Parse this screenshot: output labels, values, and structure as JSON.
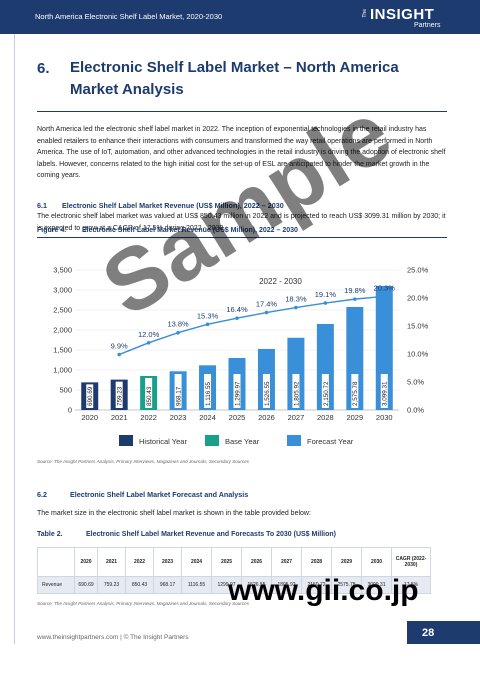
{
  "header": {
    "title": "North America Electronic Shelf Label Market, 2020-2030",
    "logo_the": "The",
    "logo_main": "INSIGHT",
    "logo_sub": "Partners"
  },
  "section": {
    "number": "6.",
    "title": "Electronic Shelf Label Market – North America Market Analysis"
  },
  "intro": "North America led the electronic shelf label market in 2022. The inception of exponential technologies in the retail industry has enabled retailers to enhance their interactions with consumers and transformed the way retail operations are performed in North America. The use of IoT, automation, and other advanced technologies in the retail industry is driving the adoption of electronic shelf labels. However, concerns related to the high initial cost for the set-up of ESL are anticipated to hinder the market growth in the coming years.",
  "sub61": {
    "number": "6.1",
    "title": "Electronic Shelf Label Market Revenue (US$ Million), 2022 – 2030",
    "text": "The electronic shelf label market was valued at US$ 850.43 million in 2022 and is projected to reach US$ 3099.31 million by 2030; it is expected to grow at a CAGR of 17.5% during 2022 - 2030."
  },
  "figure": {
    "label": "Figure 4.",
    "title": "Electronic Shelf Label Market Revenue (US$ Million), 2022 – 2030"
  },
  "chart_data": {
    "type": "bar",
    "categories": [
      "2020",
      "2021",
      "2022",
      "2023",
      "2024",
      "2025",
      "2026",
      "2027",
      "2028",
      "2029",
      "2030"
    ],
    "values": [
      690.69,
      759.23,
      850.43,
      968.17,
      1116.55,
      1299.97,
      1526.55,
      1805.92,
      2150.72,
      2575.78,
      3099.31
    ],
    "value_labels": [
      "690.69",
      "759.23",
      "850.43",
      "968.17",
      "1,116.55",
      "1,299.97",
      "1,526.55",
      "1,805.92",
      "2,150.72",
      "2,575.78",
      "3,099.31"
    ],
    "bar_types": [
      "historical",
      "historical",
      "base",
      "forecast",
      "forecast",
      "forecast",
      "forecast",
      "forecast",
      "forecast",
      "forecast",
      "forecast"
    ],
    "growth_x": [
      "2021",
      "2022",
      "2023",
      "2024",
      "2025",
      "2026",
      "2027",
      "2028",
      "2029",
      "2030"
    ],
    "growth_values": [
      9.9,
      12.0,
      13.8,
      15.3,
      16.4,
      17.4,
      18.3,
      19.1,
      19.8,
      20.3
    ],
    "growth_labels": [
      "9.9%",
      "12.0%",
      "13.8%",
      "15.3%",
      "16.4%",
      "17.4%",
      "18.3%",
      "19.1%",
      "19.8%",
      "20.3%"
    ],
    "cagr_label": "2022 - 2030",
    "ylim": [
      0,
      3500
    ],
    "y_ticks": [
      "0",
      "500",
      "1,000",
      "1,500",
      "2,000",
      "2,500",
      "3,000",
      "3,500"
    ],
    "y2lim": [
      0,
      25
    ],
    "y2_ticks": [
      "0.0%",
      "5.0%",
      "10.0%",
      "15.0%",
      "20.0%",
      "25.0%"
    ],
    "legend": [
      "Historical Year",
      "Base Year",
      "Forecast Year"
    ],
    "colors": {
      "historical": "#1d3b6e",
      "base": "#1aa08a",
      "forecast": "#3a8fd9",
      "line": "#3a8fd9"
    }
  },
  "source1": "Source: The Insight Partners Analysis, Primary Interviews, Magazines and Journals, Secondary Sources",
  "sub62": {
    "number": "6.2",
    "title": "Electronic Shelf Label Market Forecast and Analysis",
    "text": "The market size in the electronic shelf label market is shown in the table provided below:"
  },
  "table": {
    "label": "Table 2.",
    "title": "Electronic Shelf Label Market Revenue and Forecasts To 2030 (US$ Million)",
    "headers": [
      "2020",
      "2021",
      "2022",
      "2023",
      "2024",
      "2025",
      "2026",
      "2027",
      "2028",
      "2029",
      "2030"
    ],
    "cagr_header": "CAGR (2022-2030)",
    "row_label": "Revenue",
    "values": [
      "690.69",
      "759.23",
      "850.43",
      "968.17",
      "1116.55",
      "1299.97",
      "1526.55",
      "1805.92",
      "2150.72",
      "2575.78",
      "3099.31"
    ],
    "cagr": "17.5%"
  },
  "source2": "Source: The Insight Partners Analysis, Primary Interviews, Magazines and Journals, Secondary Sources",
  "footer": "www.theinsightpartners.com  |  © The Insight Partners",
  "page_number": "28",
  "watermark": "Sample",
  "watermark_url": "www.gii.co.jp"
}
